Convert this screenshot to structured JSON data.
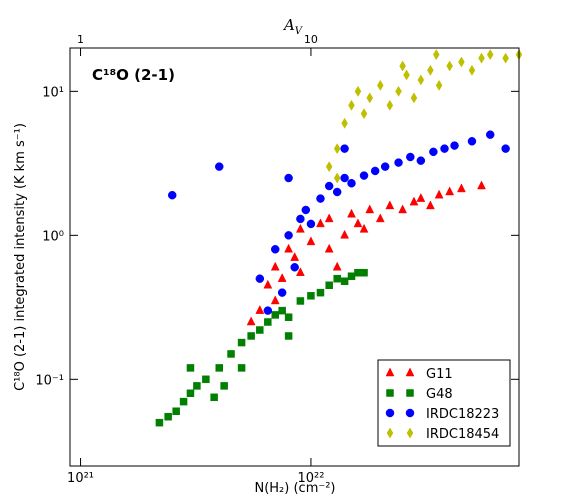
{
  "chart_data": {
    "type": "scatter",
    "annotation": "C¹⁸O (2-1)",
    "x_label": "N(H₂) (cm⁻²)",
    "y_label": "C¹⁸O (2-1) integrated intensity (K km s⁻¹)",
    "top_axis_label": {
      "main": "A",
      "sub": "V"
    },
    "xlog": true,
    "ylog": true,
    "xlim": [
      9e+20,
      8e+22
    ],
    "ylim": [
      0.025,
      20
    ],
    "xticks": [
      {
        "value": 1e+21,
        "label": "10²¹"
      },
      {
        "value": 1e+22,
        "label": "10²²"
      }
    ],
    "yticks": [
      {
        "value": 0.1,
        "label": "10⁻¹"
      },
      {
        "value": 1,
        "label": "10⁰"
      },
      {
        "value": 10,
        "label": "10¹"
      }
    ],
    "top_xlim": [
      0.9,
      80
    ],
    "top_xticks": [
      1,
      10
    ],
    "legend": "lower right",
    "series": [
      {
        "name": "G11",
        "color": "#ff0000",
        "marker": "triangle",
        "x": [
          6e+21,
          6.5e+21,
          7e+21,
          7.5e+21,
          8e+21,
          8.5e+21,
          9e+21,
          1e+22,
          1.1e+22,
          1.2e+22,
          1.2e+22,
          1.4e+22,
          1.5e+22,
          1.6e+22,
          1.8e+22,
          2e+22,
          2.2e+22,
          2.5e+22,
          2.8e+22,
          3e+22,
          3.3e+22,
          3.6e+22,
          4e+22,
          4.5e+22,
          5.5e+22,
          7e+21,
          9e+21,
          1.3e+22,
          5.5e+21,
          1.7e+22
        ],
        "values": [
          0.3,
          0.45,
          0.6,
          0.5,
          0.8,
          0.7,
          1.1,
          0.9,
          1.2,
          1.3,
          0.8,
          1.0,
          1.4,
          1.2,
          1.5,
          1.3,
          1.6,
          1.5,
          1.7,
          1.8,
          1.6,
          1.9,
          2.0,
          2.1,
          2.2,
          0.35,
          0.55,
          0.6,
          0.25,
          1.1
        ]
      },
      {
        "name": "G48",
        "color": "#007f00",
        "marker": "square",
        "x": [
          2.2e+21,
          2.4e+21,
          2.6e+21,
          2.8e+21,
          3e+21,
          3.2e+21,
          3.5e+21,
          3.8e+21,
          4e+21,
          4.2e+21,
          4.5e+21,
          5e+21,
          5.5e+21,
          6e+21,
          6.5e+21,
          7e+21,
          7.5e+21,
          8e+21,
          9e+21,
          1e+22,
          1.1e+22,
          1.2e+22,
          1.3e+22,
          1.4e+22,
          1.5e+22,
          1.6e+22,
          1.7e+22,
          5e+21,
          8e+21,
          3e+21
        ],
        "values": [
          0.05,
          0.055,
          0.06,
          0.07,
          0.08,
          0.09,
          0.1,
          0.075,
          0.12,
          0.09,
          0.15,
          0.18,
          0.2,
          0.22,
          0.25,
          0.28,
          0.3,
          0.27,
          0.35,
          0.38,
          0.4,
          0.45,
          0.5,
          0.48,
          0.52,
          0.55,
          0.55,
          0.12,
          0.2,
          0.12
        ]
      },
      {
        "name": "IRDC18223",
        "color": "#0000ff",
        "marker": "circle",
        "x": [
          2.5e+21,
          4e+21,
          6e+21,
          6.5e+21,
          7e+21,
          7.5e+21,
          8e+21,
          8.5e+21,
          9e+21,
          9.5e+21,
          1e+22,
          1.1e+22,
          1.2e+22,
          1.3e+22,
          1.4e+22,
          1.5e+22,
          1.7e+22,
          1.9e+22,
          2.1e+22,
          2.4e+22,
          2.7e+22,
          3e+22,
          3.4e+22,
          3.8e+22,
          4.2e+22,
          5e+22,
          6e+22,
          7e+22,
          8e+21,
          1.4e+22
        ],
        "values": [
          1.9,
          3.0,
          0.5,
          0.3,
          0.8,
          0.4,
          1.0,
          0.6,
          1.3,
          1.5,
          1.2,
          1.8,
          2.2,
          2.0,
          2.5,
          2.3,
          2.6,
          2.8,
          3.0,
          3.2,
          3.5,
          3.3,
          3.8,
          4.0,
          4.2,
          4.5,
          5.0,
          4.0,
          2.5,
          4.0
        ]
      },
      {
        "name": "IRDC18454",
        "color": "#bfbf00",
        "marker": "diamond",
        "x": [
          1.2e+22,
          1.3e+22,
          1.4e+22,
          1.5e+22,
          1.6e+22,
          1.7e+22,
          1.8e+22,
          2e+22,
          2.2e+22,
          2.4e+22,
          2.6e+22,
          2.8e+22,
          3e+22,
          3.3e+22,
          3.6e+22,
          4e+22,
          4.5e+22,
          5e+22,
          5.5e+22,
          6e+22,
          7e+22,
          8e+22,
          1.3e+22,
          2.5e+22,
          3.5e+22
        ],
        "values": [
          3.0,
          4.0,
          6.0,
          8.0,
          10.0,
          7.0,
          9.0,
          11.0,
          8.0,
          10.0,
          13.0,
          9.0,
          12.0,
          14.0,
          11.0,
          15.0,
          16.0,
          14.0,
          17.0,
          18.0,
          17.0,
          18.0,
          2.5,
          15.0,
          18.0
        ]
      }
    ]
  }
}
